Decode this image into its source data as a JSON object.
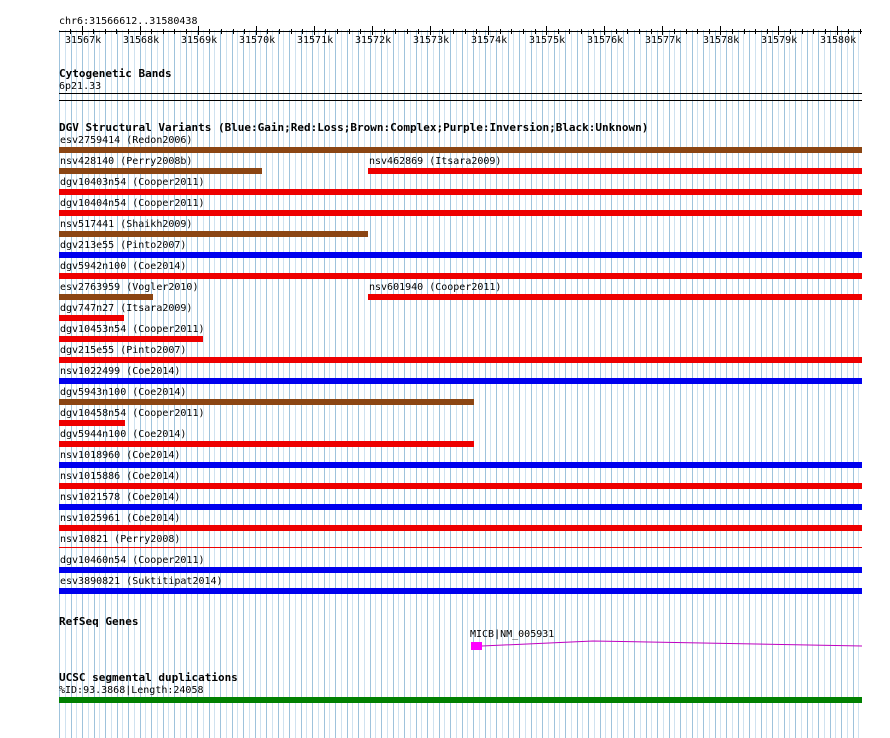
{
  "browser": {
    "position": "chr6:31566612..31580438",
    "range_start": 31566612,
    "range_end": 31580438,
    "scale_labels": [
      "31567k",
      "31568k",
      "31569k",
      "31570k",
      "31571k",
      "31572k",
      "31573k",
      "31574k",
      "31575k",
      "31576k",
      "31577k",
      "31578k",
      "31579k",
      "31580k"
    ]
  },
  "cytoband": {
    "title": "Cytogenetic Bands",
    "band": "6p21.33"
  },
  "dgv": {
    "title": "DGV Structural Variants (Blue:Gain;Red:Loss;Brown:Complex;Purple:Inversion;Black:Unknown)",
    "colors": {
      "gain": "#0000ee",
      "loss": "#ee0000",
      "complex": "#8b4513",
      "inversion": "#800080",
      "unknown": "#000000"
    },
    "rows": [
      [
        {
          "label": "esv2759414 (Redon2006)",
          "start": 31566612,
          "end": 31580438,
          "type": "complex"
        }
      ],
      [
        {
          "label": "nsv428140 (Perry2008b)",
          "start": 31566612,
          "end": 31570100,
          "type": "complex"
        },
        {
          "label": "nsv462869 (Itsara2009)",
          "start": 31571930,
          "end": 31580438,
          "type": "loss"
        }
      ],
      [
        {
          "label": "dgv10403n54 (Cooper2011)",
          "start": 31566612,
          "end": 31580438,
          "type": "loss"
        }
      ],
      [
        {
          "label": "dgv10404n54 (Cooper2011)",
          "start": 31566612,
          "end": 31580438,
          "type": "loss"
        }
      ],
      [
        {
          "label": "nsv517441 (Shaikh2009)",
          "start": 31566612,
          "end": 31571930,
          "type": "complex"
        }
      ],
      [
        {
          "label": "dgv213e55 (Pinto2007)",
          "start": 31566612,
          "end": 31580438,
          "type": "gain"
        }
      ],
      [
        {
          "label": "dgv5942n100 (Coe2014)",
          "start": 31566612,
          "end": 31580438,
          "type": "loss"
        }
      ],
      [
        {
          "label": "esv2763959 (Vogler2010)",
          "start": 31566612,
          "end": 31568230,
          "type": "complex"
        },
        {
          "label": "nsv601940 (Cooper2011)",
          "start": 31571930,
          "end": 31580438,
          "type": "loss"
        }
      ],
      [
        {
          "label": "dgv747n27 (Itsara2009)",
          "start": 31566612,
          "end": 31567730,
          "type": "loss"
        }
      ],
      [
        {
          "label": "dgv10453n54 (Cooper2011)",
          "start": 31566612,
          "end": 31569090,
          "type": "loss"
        }
      ],
      [
        {
          "label": "dgv215e55 (Pinto2007)",
          "start": 31566612,
          "end": 31580438,
          "type": "loss"
        }
      ],
      [
        {
          "label": "nsv1022499 (Coe2014)",
          "start": 31566612,
          "end": 31580438,
          "type": "gain"
        }
      ],
      [
        {
          "label": "dgv5943n100 (Coe2014)",
          "start": 31566612,
          "end": 31573760,
          "type": "complex"
        }
      ],
      [
        {
          "label": "dgv10458n54 (Cooper2011)",
          "start": 31566612,
          "end": 31567750,
          "type": "loss"
        }
      ],
      [
        {
          "label": "dgv5944n100 (Coe2014)",
          "start": 31566612,
          "end": 31573760,
          "type": "loss"
        }
      ],
      [
        {
          "label": "nsv1018960 (Coe2014)",
          "start": 31566612,
          "end": 31580438,
          "type": "gain"
        }
      ],
      [
        {
          "label": "nsv1015886 (Coe2014)",
          "start": 31566612,
          "end": 31580438,
          "type": "loss"
        }
      ],
      [
        {
          "label": "nsv1021578 (Coe2014)",
          "start": 31566612,
          "end": 31580438,
          "type": "gain"
        }
      ],
      [
        {
          "label": "nsv1025961 (Coe2014)",
          "start": 31566612,
          "end": 31580438,
          "type": "loss"
        }
      ],
      [
        {
          "label": "nsv10821 (Perry2008)",
          "start": 31566612,
          "end": 31580438,
          "type": "loss",
          "thin": true
        }
      ],
      [
        {
          "label": "dgv10460n54 (Cooper2011)",
          "start": 31566612,
          "end": 31580438,
          "type": "gain"
        }
      ],
      [
        {
          "label": "esv3890821 (Suktitipat2014)",
          "start": 31566612,
          "end": 31580438,
          "type": "gain"
        }
      ]
    ]
  },
  "refseq": {
    "title": "RefSeq Genes",
    "gene_label": "MICB|NM_005931",
    "gene_start": 31573700,
    "exon_end": 31573900,
    "gene_end": 31580438,
    "exon_color": "#ff00ff",
    "line_color": "#c000c0"
  },
  "segdup": {
    "title": "UCSC segmental duplications",
    "label": "%ID:93.3868|Length:24058",
    "color": "#008000",
    "start": 31566612,
    "end": 31580438
  }
}
